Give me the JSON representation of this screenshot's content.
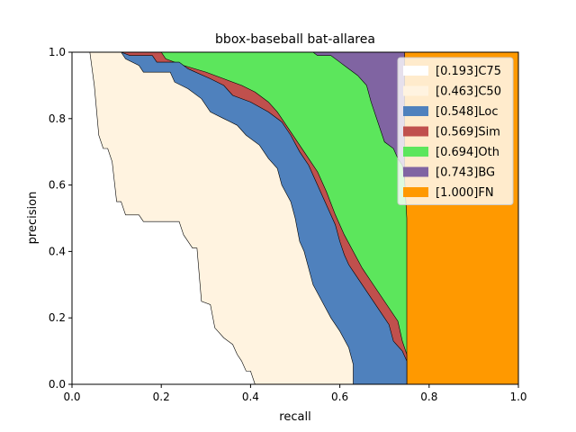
{
  "chart_data": {
    "type": "area",
    "title": "bbox-baseball bat-allarea",
    "xlabel": "recall",
    "ylabel": "precision",
    "xlim": [
      0,
      1
    ],
    "ylim": [
      0,
      1
    ],
    "xticks": [
      "0.0",
      "0.2",
      "0.4",
      "0.6",
      "0.8",
      "1.0"
    ],
    "yticks": [
      "0.0",
      "0.2",
      "0.4",
      "0.6",
      "0.8",
      "1.0"
    ],
    "grid": false,
    "legend_position": "top-right",
    "series": [
      {
        "name": "[0.193]C75",
        "color": "#ffffff",
        "points": [
          [
            0,
            1
          ],
          [
            0.04,
            1
          ],
          [
            0.05,
            0.9
          ],
          [
            0.06,
            0.75
          ],
          [
            0.07,
            0.71
          ],
          [
            0.08,
            0.71
          ],
          [
            0.09,
            0.67
          ],
          [
            0.1,
            0.55
          ],
          [
            0.11,
            0.55
          ],
          [
            0.12,
            0.51
          ],
          [
            0.15,
            0.51
          ],
          [
            0.16,
            0.49
          ],
          [
            0.24,
            0.49
          ],
          [
            0.25,
            0.45
          ],
          [
            0.26,
            0.43
          ],
          [
            0.27,
            0.41
          ],
          [
            0.28,
            0.41
          ],
          [
            0.29,
            0.25
          ],
          [
            0.31,
            0.24
          ],
          [
            0.32,
            0.17
          ],
          [
            0.34,
            0.14
          ],
          [
            0.36,
            0.12
          ],
          [
            0.37,
            0.09
          ],
          [
            0.38,
            0.07
          ],
          [
            0.39,
            0.04
          ],
          [
            0.4,
            0.04
          ],
          [
            0.41,
            0
          ]
        ]
      },
      {
        "name": "[0.463]C50",
        "color": "#fff3e0",
        "points": [
          [
            0,
            1
          ],
          [
            0.11,
            1
          ],
          [
            0.12,
            0.98
          ],
          [
            0.15,
            0.96
          ],
          [
            0.16,
            0.94
          ],
          [
            0.22,
            0.94
          ],
          [
            0.23,
            0.91
          ],
          [
            0.26,
            0.89
          ],
          [
            0.29,
            0.86
          ],
          [
            0.31,
            0.82
          ],
          [
            0.34,
            0.8
          ],
          [
            0.37,
            0.78
          ],
          [
            0.39,
            0.75
          ],
          [
            0.42,
            0.72
          ],
          [
            0.44,
            0.68
          ],
          [
            0.46,
            0.65
          ],
          [
            0.47,
            0.6
          ],
          [
            0.49,
            0.55
          ],
          [
            0.5,
            0.5
          ],
          [
            0.51,
            0.43
          ],
          [
            0.52,
            0.4
          ],
          [
            0.53,
            0.35
          ],
          [
            0.54,
            0.3
          ],
          [
            0.56,
            0.25
          ],
          [
            0.58,
            0.2
          ],
          [
            0.6,
            0.16
          ],
          [
            0.62,
            0.11
          ],
          [
            0.63,
            0.06
          ],
          [
            0.63,
            0
          ]
        ]
      },
      {
        "name": "[0.548]Loc",
        "color": "#4f81bd",
        "points": [
          [
            0,
            1
          ],
          [
            0.11,
            1
          ],
          [
            0.13,
            0.99
          ],
          [
            0.18,
            0.99
          ],
          [
            0.19,
            0.97
          ],
          [
            0.24,
            0.97
          ],
          [
            0.26,
            0.95
          ],
          [
            0.31,
            0.92
          ],
          [
            0.34,
            0.9
          ],
          [
            0.36,
            0.87
          ],
          [
            0.4,
            0.85
          ],
          [
            0.44,
            0.82
          ],
          [
            0.47,
            0.79
          ],
          [
            0.49,
            0.75
          ],
          [
            0.51,
            0.7
          ],
          [
            0.53,
            0.66
          ],
          [
            0.55,
            0.6
          ],
          [
            0.57,
            0.54
          ],
          [
            0.59,
            0.48
          ],
          [
            0.6,
            0.43
          ],
          [
            0.61,
            0.39
          ],
          [
            0.62,
            0.36
          ],
          [
            0.63,
            0.34
          ],
          [
            0.65,
            0.3
          ],
          [
            0.67,
            0.26
          ],
          [
            0.69,
            0.22
          ],
          [
            0.71,
            0.18
          ],
          [
            0.72,
            0.13
          ],
          [
            0.74,
            0.1
          ],
          [
            0.75,
            0.07
          ],
          [
            0.75,
            0
          ]
        ]
      },
      {
        "name": "[0.569]Sim",
        "color": "#c0504d",
        "points": [
          [
            0,
            1
          ],
          [
            0.2,
            1
          ],
          [
            0.21,
            0.98
          ],
          [
            0.25,
            0.96
          ],
          [
            0.3,
            0.94
          ],
          [
            0.34,
            0.92
          ],
          [
            0.38,
            0.9
          ],
          [
            0.41,
            0.88
          ],
          [
            0.44,
            0.85
          ],
          [
            0.46,
            0.82
          ],
          [
            0.48,
            0.78
          ],
          [
            0.5,
            0.74
          ],
          [
            0.52,
            0.7
          ],
          [
            0.55,
            0.64
          ],
          [
            0.57,
            0.58
          ],
          [
            0.59,
            0.51
          ],
          [
            0.61,
            0.45
          ],
          [
            0.63,
            0.4
          ],
          [
            0.65,
            0.35
          ],
          [
            0.67,
            0.31
          ],
          [
            0.69,
            0.27
          ],
          [
            0.71,
            0.23
          ],
          [
            0.73,
            0.19
          ],
          [
            0.74,
            0.13
          ],
          [
            0.75,
            0.09
          ],
          [
            0.75,
            0
          ]
        ]
      },
      {
        "name": "[0.694]Oth",
        "color": "#5ce65c",
        "points": [
          [
            0,
            1
          ],
          [
            0.54,
            1
          ],
          [
            0.55,
            0.99
          ],
          [
            0.58,
            0.99
          ],
          [
            0.6,
            0.97
          ],
          [
            0.62,
            0.95
          ],
          [
            0.64,
            0.93
          ],
          [
            0.66,
            0.9
          ],
          [
            0.67,
            0.85
          ],
          [
            0.68,
            0.81
          ],
          [
            0.69,
            0.77
          ],
          [
            0.7,
            0.73
          ],
          [
            0.72,
            0.71
          ],
          [
            0.73,
            0.68
          ],
          [
            0.74,
            0.66
          ],
          [
            0.745,
            0.62
          ],
          [
            0.75,
            0.5
          ],
          [
            0.75,
            0
          ]
        ]
      },
      {
        "name": "[0.743]BG",
        "color": "#8064a2",
        "points": [
          [
            0,
            1
          ],
          [
            0.745,
            1
          ],
          [
            0.745,
            0
          ]
        ]
      },
      {
        "name": "[1.000]FN",
        "color": "#ff9900",
        "points": [
          [
            0,
            1
          ],
          [
            1,
            1
          ],
          [
            1,
            0
          ]
        ]
      }
    ]
  }
}
